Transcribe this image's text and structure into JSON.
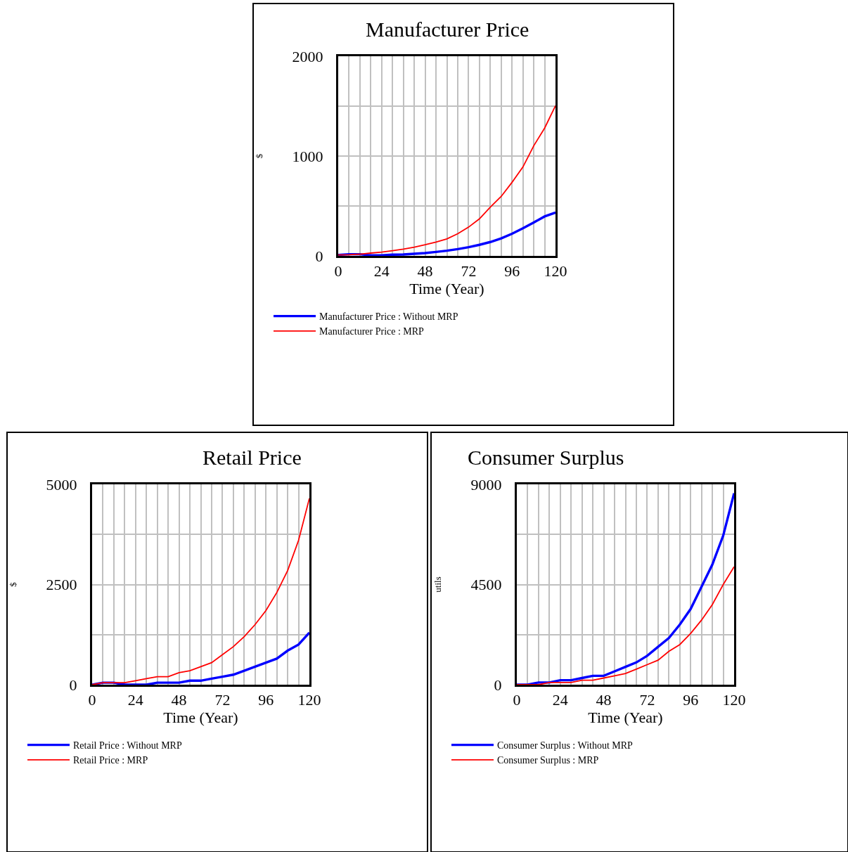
{
  "chart_data": [
    {
      "type": "line",
      "title": "Manufacturer Price",
      "xlabel": "Time (Year)",
      "ylabel": "$",
      "x": [
        0,
        6,
        12,
        18,
        24,
        30,
        36,
        42,
        48,
        54,
        60,
        66,
        72,
        78,
        84,
        90,
        96,
        102,
        108,
        114,
        120
      ],
      "series": [
        {
          "name": "Manufacturer Price : Without MRP",
          "color": "#0000ff",
          "values": [
            10,
            17,
            17,
            5,
            5,
            12,
            14,
            21,
            28,
            40,
            52,
            68,
            87,
            111,
            139,
            175,
            222,
            276,
            335,
            395,
            434
          ]
        },
        {
          "name": "Manufacturer Price : MRP",
          "color": "#ff0000",
          "values": [
            10,
            12,
            17,
            28,
            38,
            52,
            68,
            87,
            111,
            139,
            170,
            222,
            288,
            371,
            489,
            595,
            737,
            890,
            1103,
            1280,
            1504
          ]
        }
      ],
      "xlim": [
        0,
        120
      ],
      "xticks": [
        0,
        {
          "value": 6,
          "label": null
        },
        {
          "value": 12,
          "label": null
        },
        {
          "value": 18,
          "label": null
        },
        24,
        {
          "value": 30,
          "label": null
        },
        {
          "value": 36,
          "label": null
        },
        {
          "value": 42,
          "label": null
        },
        48,
        {
          "value": 54,
          "label": null
        },
        {
          "value": 60,
          "label": null
        },
        {
          "value": 66,
          "label": null
        },
        72,
        {
          "value": 78,
          "label": null
        },
        {
          "value": 84,
          "label": null
        },
        {
          "value": 90,
          "label": null
        },
        96,
        {
          "value": 102,
          "label": null
        },
        {
          "value": 108,
          "label": null
        },
        {
          "value": 114,
          "label": null
        },
        120
      ],
      "ylim": [
        0,
        2000
      ],
      "yticks": [
        0,
        {
          "value": 500,
          "label": null
        },
        1000,
        {
          "value": 1500,
          "label": null
        },
        2000
      ],
      "grid": true,
      "legend": "bottom",
      "line_style": "solid"
    },
    {
      "type": "line",
      "title": "Retail Price",
      "xlabel": "Time (Year)",
      "ylabel": "$",
      "x": [
        0,
        6,
        12,
        18,
        24,
        30,
        36,
        42,
        48,
        54,
        60,
        66,
        72,
        78,
        84,
        90,
        96,
        102,
        108,
        114,
        120
      ],
      "series": [
        {
          "name": "Retail Price : Without MRP",
          "color": "#0000ff",
          "values": [
            0,
            50,
            50,
            0,
            0,
            0,
            50,
            50,
            50,
            100,
            100,
            150,
            200,
            250,
            350,
            450,
            550,
            650,
            850,
            1000,
            1300
          ]
        },
        {
          "name": "Retail Price : MRP",
          "color": "#ff0000",
          "values": [
            0,
            50,
            50,
            50,
            100,
            150,
            200,
            200,
            300,
            350,
            450,
            550,
            750,
            950,
            1200,
            1500,
            1850,
            2300,
            2850,
            3600,
            4650
          ]
        }
      ],
      "xlim": [
        0,
        120
      ],
      "xticks": [
        0,
        {
          "value": 6,
          "label": null
        },
        {
          "value": 12,
          "label": null
        },
        {
          "value": 18,
          "label": null
        },
        24,
        {
          "value": 30,
          "label": null
        },
        {
          "value": 36,
          "label": null
        },
        {
          "value": 42,
          "label": null
        },
        48,
        {
          "value": 54,
          "label": null
        },
        {
          "value": 60,
          "label": null
        },
        {
          "value": 66,
          "label": null
        },
        72,
        {
          "value": 78,
          "label": null
        },
        {
          "value": 84,
          "label": null
        },
        {
          "value": 90,
          "label": null
        },
        96,
        {
          "value": 102,
          "label": null
        },
        {
          "value": 108,
          "label": null
        },
        {
          "value": 114,
          "label": null
        },
        120
      ],
      "ylim": [
        0,
        5000
      ],
      "yticks": [
        0,
        {
          "value": 1250,
          "label": null
        },
        2500,
        {
          "value": 3750,
          "label": null
        },
        5000
      ],
      "grid": true,
      "legend": "bottom",
      "line_style": "solid"
    },
    {
      "type": "line",
      "title": "Consumer Surplus",
      "xlabel": "Time (Year)",
      "ylabel": "utils",
      "x": [
        0,
        6,
        12,
        18,
        24,
        30,
        36,
        42,
        48,
        54,
        60,
        66,
        72,
        78,
        84,
        90,
        96,
        102,
        108,
        114,
        120
      ],
      "series": [
        {
          "name": "Consumer Surplus : Without MRP",
          "color": "#0000ff",
          "values": [
            0,
            0,
            100,
            100,
            200,
            200,
            300,
            400,
            400,
            600,
            800,
            1000,
            1300,
            1700,
            2100,
            2700,
            3400,
            4400,
            5400,
            6700,
            8600
          ]
        },
        {
          "name": "Consumer Surplus : MRP",
          "color": "#ff0000",
          "values": [
            0,
            0,
            0,
            100,
            100,
            100,
            200,
            200,
            300,
            400,
            500,
            700,
            900,
            1100,
            1500,
            1800,
            2300,
            2900,
            3600,
            4500,
            5300
          ]
        }
      ],
      "xlim": [
        0,
        120
      ],
      "xticks": [
        0,
        {
          "value": 6,
          "label": null
        },
        {
          "value": 12,
          "label": null
        },
        {
          "value": 18,
          "label": null
        },
        24,
        {
          "value": 30,
          "label": null
        },
        {
          "value": 36,
          "label": null
        },
        {
          "value": 42,
          "label": null
        },
        48,
        {
          "value": 54,
          "label": null
        },
        {
          "value": 60,
          "label": null
        },
        {
          "value": 66,
          "label": null
        },
        72,
        {
          "value": 78,
          "label": null
        },
        {
          "value": 84,
          "label": null
        },
        {
          "value": 90,
          "label": null
        },
        96,
        {
          "value": 102,
          "label": null
        },
        {
          "value": 108,
          "label": null
        },
        {
          "value": 114,
          "label": null
        },
        120
      ],
      "ylim": [
        0,
        9000
      ],
      "yticks": [
        0,
        {
          "value": 2250,
          "label": null
        },
        4500,
        {
          "value": 6750,
          "label": null
        },
        9000
      ],
      "grid": true,
      "legend": "bottom",
      "line_style": "solid"
    }
  ]
}
